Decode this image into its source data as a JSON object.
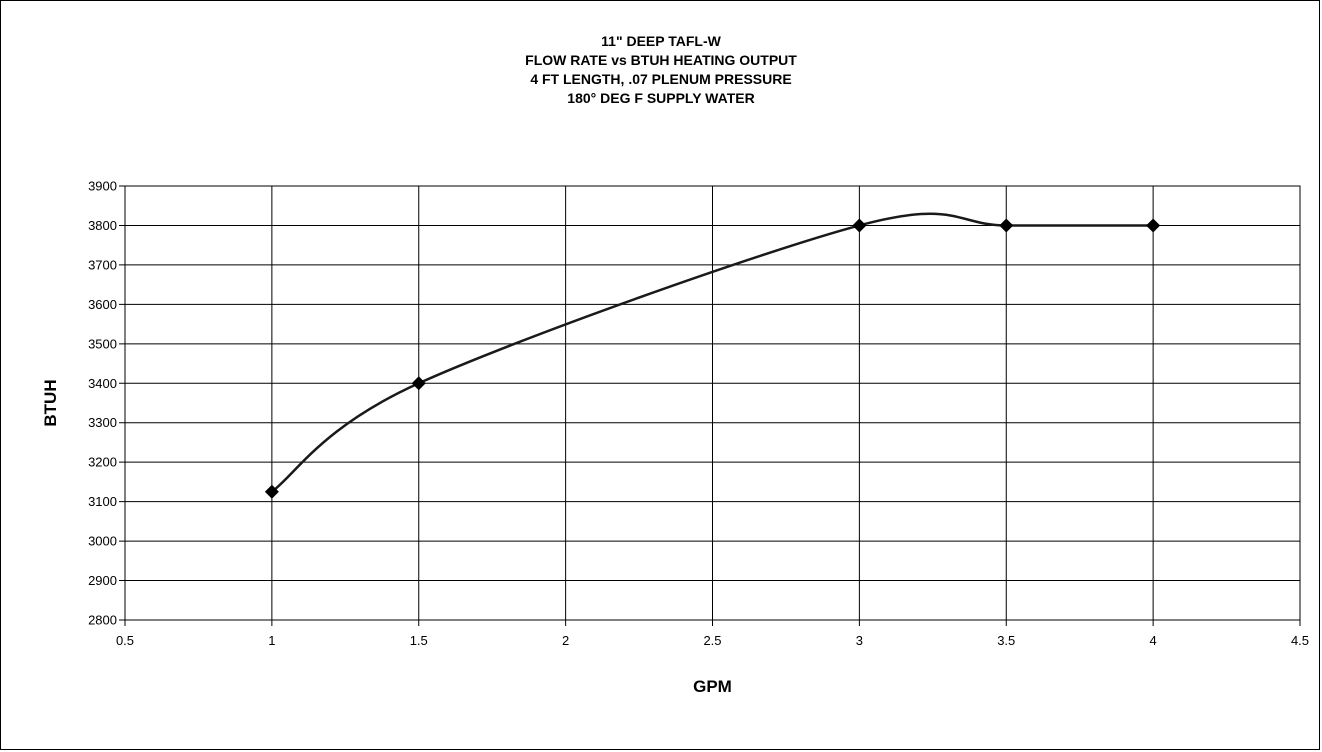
{
  "chart_data": {
    "type": "line",
    "title_lines": [
      "11\" DEEP TAFL-W",
      "FLOW RATE vs BTUH HEATING OUTPUT",
      "4 FT LENGTH, .07 PLENUM PRESSURE",
      "180° DEG F SUPPLY WATER"
    ],
    "xlabel": "GPM",
    "ylabel": "BTUH",
    "xlim": [
      0.5,
      4.5
    ],
    "ylim": [
      2800,
      3900
    ],
    "x_ticks": [
      0.5,
      1,
      1.5,
      2,
      2.5,
      3,
      3.5,
      4,
      4.5
    ],
    "y_ticks": [
      2800,
      2900,
      3000,
      3100,
      3200,
      3300,
      3400,
      3500,
      3600,
      3700,
      3800,
      3900
    ],
    "grid": true,
    "smoothed": true,
    "marker": "diamond",
    "colors": {
      "line": "#1a1a1a",
      "marker": "#000000",
      "grid": "#000000"
    },
    "series": [
      {
        "x": [
          1,
          1.5,
          3,
          3.5,
          4
        ],
        "y": [
          3125,
          3400,
          3800,
          3800,
          3800
        ]
      }
    ]
  }
}
